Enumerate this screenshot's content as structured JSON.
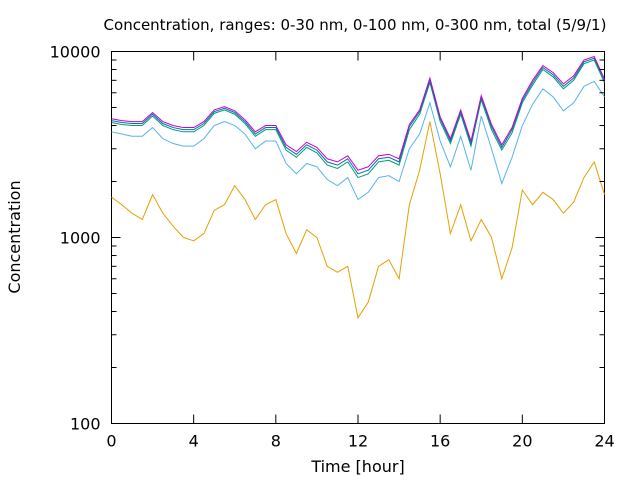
{
  "chart_data": {
    "type": "line",
    "title": "Concentration, ranges: 0-30 nm, 0-100 nm, 0-300 nm, total (5/9/1)",
    "xlabel": "Time [hour]",
    "ylabel": "Concentration",
    "xlim": [
      0,
      24
    ],
    "ylim": [
      100,
      10000
    ],
    "yscale": "log",
    "grid": false,
    "legend": "none",
    "x_ticks": [
      0,
      4,
      8,
      12,
      16,
      20,
      24
    ],
    "x_tick_labels": [
      "0",
      "4",
      "8",
      "12",
      "16",
      "20",
      "24"
    ],
    "y_ticks": [
      100,
      1000,
      10000
    ],
    "y_tick_labels": [
      "100",
      "1000",
      "10000"
    ],
    "series": [
      {
        "color": "#e6a000",
        "x": [
          0,
          0.5,
          1,
          1.5,
          2,
          2.5,
          3,
          3.5,
          4,
          4.5,
          5,
          5.5,
          6,
          6.5,
          7,
          7.5,
          8,
          8.5,
          9,
          9.5,
          10,
          10.5,
          11,
          11.5,
          12,
          12.5,
          13,
          13.5,
          14,
          14.5,
          15,
          15.5,
          16,
          16.5,
          17,
          17.5,
          18,
          18.5,
          19,
          19.5,
          20,
          20.5,
          21,
          21.5,
          22,
          22.5,
          23,
          23.5,
          24
        ],
        "values": [
          1650,
          1500,
          1350,
          1250,
          1700,
          1350,
          1150,
          1000,
          960,
          1050,
          1400,
          1500,
          1900,
          1600,
          1250,
          1500,
          1600,
          1050,
          820,
          1100,
          1000,
          700,
          650,
          700,
          370,
          450,
          700,
          760,
          600,
          1500,
          2300,
          4200,
          2200,
          1050,
          1500,
          960,
          1250,
          1000,
          600,
          880,
          1800,
          1500,
          1750,
          1600,
          1350,
          1550,
          2100,
          2550,
          1700
        ]
      },
      {
        "color": "#56b4e9",
        "x": [
          0,
          0.5,
          1,
          1.5,
          2,
          2.5,
          3,
          3.5,
          4,
          4.5,
          5,
          5.5,
          6,
          6.5,
          7,
          7.5,
          8,
          8.5,
          9,
          9.5,
          10,
          10.5,
          11,
          11.5,
          12,
          12.5,
          13,
          13.5,
          14,
          14.5,
          15,
          15.5,
          16,
          16.5,
          17,
          17.5,
          18,
          18.5,
          19,
          19.5,
          20,
          20.5,
          21,
          21.5,
          22,
          22.5,
          23,
          23.5,
          24
        ],
        "values": [
          3700,
          3600,
          3500,
          3500,
          3900,
          3400,
          3200,
          3100,
          3100,
          3400,
          4000,
          4200,
          4000,
          3600,
          3000,
          3300,
          3300,
          2500,
          2200,
          2500,
          2400,
          2050,
          1900,
          2100,
          1600,
          1750,
          2100,
          2150,
          2000,
          3000,
          3600,
          5300,
          3300,
          2400,
          3500,
          2300,
          4500,
          3000,
          1950,
          2700,
          4000,
          5200,
          6300,
          5700,
          4800,
          5300,
          6500,
          6900,
          5700
        ]
      },
      {
        "color": "#009e73",
        "x": [
          0,
          0.5,
          1,
          1.5,
          2,
          2.5,
          3,
          3.5,
          4,
          4.5,
          5,
          5.5,
          6,
          6.5,
          7,
          7.5,
          8,
          8.5,
          9,
          9.5,
          10,
          10.5,
          11,
          11.5,
          12,
          12.5,
          13,
          13.5,
          14,
          14.5,
          15,
          15.5,
          16,
          16.5,
          17,
          17.5,
          18,
          18.5,
          19,
          19.5,
          20,
          20.5,
          21,
          21.5,
          22,
          22.5,
          23,
          23.5,
          24
        ],
        "values": [
          4150,
          4050,
          4000,
          4000,
          4500,
          4000,
          3800,
          3700,
          3700,
          4000,
          4650,
          4850,
          4600,
          4100,
          3500,
          3800,
          3800,
          2950,
          2700,
          3050,
          2850,
          2450,
          2350,
          2550,
          2100,
          2200,
          2550,
          2600,
          2450,
          3800,
          4600,
          6800,
          4200,
          3200,
          4600,
          3100,
          5500,
          3800,
          2950,
          3650,
          5300,
          6600,
          8000,
          7300,
          6300,
          7000,
          8600,
          9000,
          6800
        ]
      },
      {
        "color": "#0072b2",
        "x": [
          0,
          0.5,
          1,
          1.5,
          2,
          2.5,
          3,
          3.5,
          4,
          4.5,
          5,
          5.5,
          6,
          6.5,
          7,
          7.5,
          8,
          8.5,
          9,
          9.5,
          10,
          10.5,
          11,
          11.5,
          12,
          12.5,
          13,
          13.5,
          14,
          14.5,
          15,
          15.5,
          16,
          16.5,
          17,
          17.5,
          18,
          18.5,
          19,
          19.5,
          20,
          20.5,
          21,
          21.5,
          22,
          22.5,
          23,
          23.5,
          24
        ],
        "values": [
          4250,
          4150,
          4100,
          4100,
          4600,
          4100,
          3900,
          3800,
          3800,
          4100,
          4750,
          4950,
          4700,
          4200,
          3600,
          3900,
          3900,
          3050,
          2800,
          3150,
          2950,
          2550,
          2450,
          2650,
          2200,
          2300,
          2650,
          2700,
          2550,
          3950,
          4750,
          7000,
          4350,
          3300,
          4750,
          3200,
          5650,
          3950,
          3050,
          3800,
          5450,
          6800,
          8200,
          7500,
          6500,
          7200,
          8800,
          9200,
          7000
        ]
      },
      {
        "color": "#cc00cc",
        "x": [
          0,
          0.5,
          1,
          1.5,
          2,
          2.5,
          3,
          3.5,
          4,
          4.5,
          5,
          5.5,
          6,
          6.5,
          7,
          7.5,
          8,
          8.5,
          9,
          9.5,
          10,
          10.5,
          11,
          11.5,
          12,
          12.5,
          13,
          13.5,
          14,
          14.5,
          15,
          15.5,
          16,
          16.5,
          17,
          17.5,
          18,
          18.5,
          19,
          19.5,
          20,
          20.5,
          21,
          21.5,
          22,
          22.5,
          23,
          23.5,
          24
        ],
        "values": [
          4350,
          4250,
          4200,
          4200,
          4700,
          4200,
          4000,
          3900,
          3900,
          4200,
          4850,
          5050,
          4800,
          4300,
          3700,
          4000,
          4000,
          3150,
          2900,
          3250,
          3050,
          2650,
          2550,
          2750,
          2300,
          2400,
          2750,
          2800,
          2650,
          4050,
          4850,
          7200,
          4450,
          3400,
          4850,
          3300,
          5800,
          4050,
          3150,
          3900,
          5600,
          7000,
          8400,
          7700,
          6700,
          7400,
          9000,
          9400,
          7100
        ]
      }
    ]
  }
}
